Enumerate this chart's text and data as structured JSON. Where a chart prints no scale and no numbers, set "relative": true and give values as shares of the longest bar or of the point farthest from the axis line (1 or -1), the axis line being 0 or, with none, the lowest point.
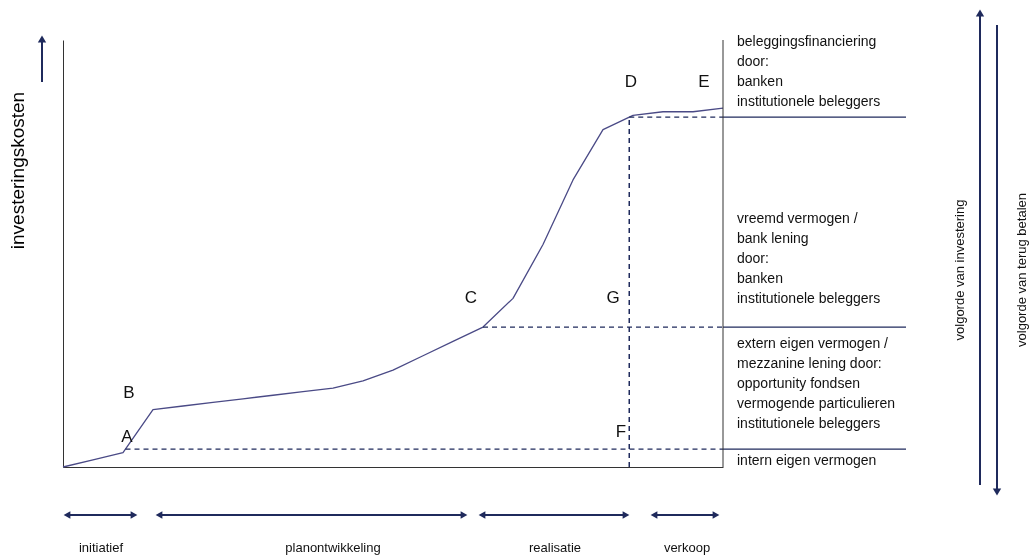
{
  "chart_data": {
    "type": "line",
    "relative": true,
    "ylabel": "investeringskosten",
    "categories": [
      null,
      null,
      null,
      null,
      null,
      null,
      null,
      null,
      null,
      null,
      null,
      null,
      null,
      null,
      null,
      null,
      null,
      null,
      null,
      null,
      null,
      null,
      null
    ],
    "series": [
      {
        "color": "#4a4a86",
        "values": [
          0,
          0.02,
          0.04,
          0.16,
          0.17,
          0.18,
          0.19,
          0.2,
          0.21,
          0.22,
          0.24,
          0.27,
          0.31,
          0.35,
          0.39,
          0.47,
          0.62,
          0.8,
          0.94,
          0.98,
          0.99,
          0.99,
          1
        ]
      }
    ],
    "ref_lines": [
      {
        "axis": "y",
        "value": 0.05,
        "line_style": "dashed",
        "color": "#1f2a5c"
      },
      {
        "axis": "y",
        "value": 0.39,
        "line_style": "dashed",
        "color": "#1f2a5c"
      },
      {
        "axis": "y",
        "value": 0.975,
        "line_style": "dashed",
        "color": "#1f2a5c"
      }
    ],
    "annotations": [
      "A",
      "B",
      "C",
      "D",
      "E",
      "F",
      "G",
      "beleggingsfinanciering\ndoor:\nbanken\ninstitutionele beleggers",
      "vreemd vermogen /\nbank lening\ndoor:\nbanken\ninstitutionele beleggers",
      "extern eigen vermogen /\nmezzanine lening door:\nopportunity fondsen\nvermogende particulieren\ninstitutionele beleggers",
      "intern eigen vermogen",
      "initiatief",
      "planontwikkeling",
      "realisatie",
      "verkoop",
      "volgorde van investering",
      "volgorde van terug betalen"
    ],
    "grid": false,
    "marker": "none",
    "line_style": "solid"
  }
}
